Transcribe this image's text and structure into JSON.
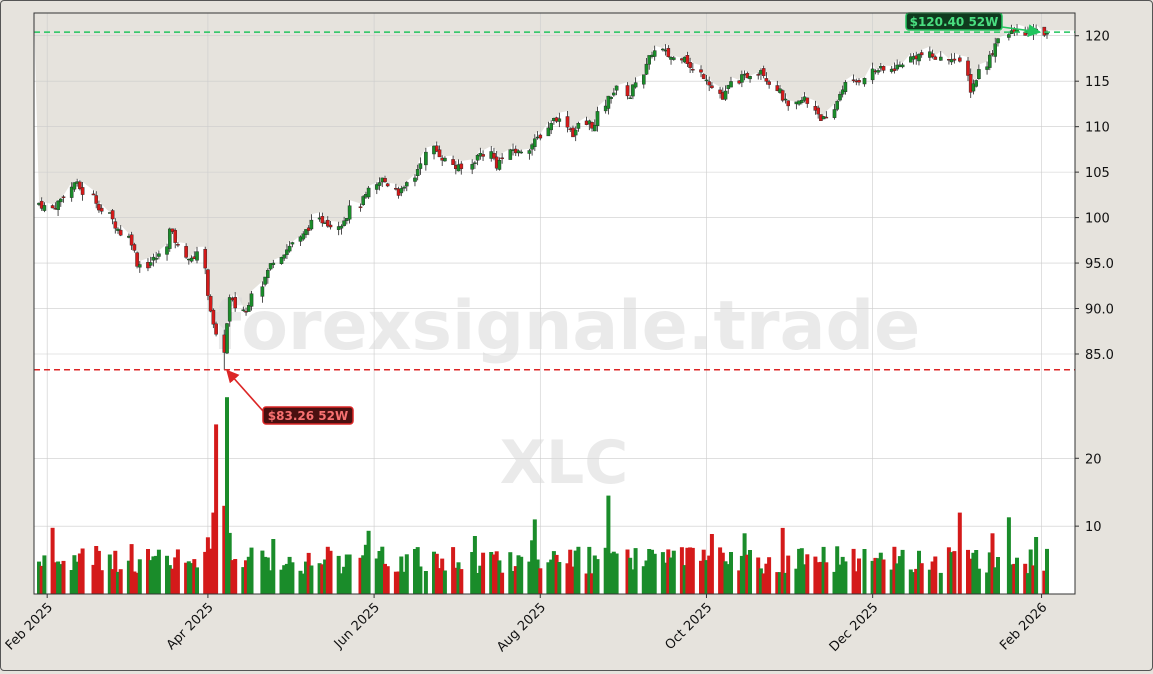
{
  "chart_data": {
    "type": "candlestick",
    "title": "",
    "watermark": "forexsignale.trade",
    "symbol": "XLC",
    "price_axis": {
      "ylim": [
        79.5,
        122.5
      ],
      "ticks": [
        85.0,
        90.0,
        95.0,
        100,
        105,
        110,
        115,
        120
      ],
      "tick_labels": [
        "85.0",
        "90.0",
        "95.0",
        "100",
        "105",
        "110",
        "115",
        "120"
      ]
    },
    "volume_axis": {
      "ylim": [
        0,
        28
      ],
      "ticks": [
        10,
        20
      ],
      "tick_labels": [
        "10",
        "20"
      ]
    },
    "x_axis": {
      "tick_dates": [
        "2025-02-01",
        "2025-04-01",
        "2025-06-01",
        "2025-08-01",
        "2025-10-01",
        "2025-12-01",
        "2026-02-01"
      ],
      "tick_labels": [
        "Feb 2025",
        "Apr 2025",
        "Jun 2025",
        "Aug 2025",
        "Oct 2025",
        "Dec 2025",
        "Feb 2026"
      ]
    },
    "annotations": {
      "high": {
        "label": "$120.40 52W",
        "value": 120.4,
        "date": "2026-02-01",
        "color": "#22c55e"
      },
      "low": {
        "label": "$83.26 52W",
        "value": 83.26,
        "date": "2025-04-07",
        "color": "#dc2626"
      }
    },
    "colors": {
      "up": "#1a8c2a",
      "down": "#d41a1a",
      "shade": "#e6e3dd",
      "plot_bg": "#ffffff"
    },
    "start_date": "2025-01-29",
    "trading_days": [
      "2025-01-29",
      "2025-01-30",
      "2025-01-31",
      "2025-02-03",
      "2025-02-04",
      "2025-02-05",
      "2025-02-06",
      "2025-02-07",
      "2025-02-10",
      "2025-02-11",
      "2025-02-12",
      "2025-02-13",
      "2025-02-14",
      "2025-02-18",
      "2025-02-19",
      "2025-02-20",
      "2025-02-21",
      "2025-02-24",
      "2025-02-25",
      "2025-02-26",
      "2025-02-27",
      "2025-02-28",
      "2025-03-03",
      "2025-03-04",
      "2025-03-05",
      "2025-03-06",
      "2025-03-07",
      "2025-03-10",
      "2025-03-11",
      "2025-03-12",
      "2025-03-13",
      "2025-03-14",
      "2025-03-17",
      "2025-03-18",
      "2025-03-19",
      "2025-03-20",
      "2025-03-21",
      "2025-03-24",
      "2025-03-25",
      "2025-03-26",
      "2025-03-27",
      "2025-03-28",
      "2025-03-31",
      "2025-04-01",
      "2025-04-02",
      "2025-04-03",
      "2025-04-04",
      "2025-04-07",
      "2025-04-08",
      "2025-04-09",
      "2025-04-10",
      "2025-04-11",
      "2025-04-14",
      "2025-04-15",
      "2025-04-16",
      "2025-04-17",
      "2025-04-21",
      "2025-04-22",
      "2025-04-23",
      "2025-04-24",
      "2025-04-25",
      "2025-04-28",
      "2025-04-29",
      "2025-04-30",
      "2025-05-01",
      "2025-05-02",
      "2025-05-05",
      "2025-05-06",
      "2025-05-07",
      "2025-05-08",
      "2025-05-09",
      "2025-05-12",
      "2025-05-13",
      "2025-05-14",
      "2025-05-15",
      "2025-05-16",
      "2025-05-19",
      "2025-05-20",
      "2025-05-21",
      "2025-05-22",
      "2025-05-23",
      "2025-05-27",
      "2025-05-28",
      "2025-05-29",
      "2025-05-30",
      "2025-06-02",
      "2025-06-03",
      "2025-06-04",
      "2025-06-05",
      "2025-06-06",
      "2025-06-09",
      "2025-06-10",
      "2025-06-11",
      "2025-06-12",
      "2025-06-13",
      "2025-06-16",
      "2025-06-17",
      "2025-06-18",
      "2025-06-20",
      "2025-06-23",
      "2025-06-24",
      "2025-06-25",
      "2025-06-26",
      "2025-06-27",
      "2025-06-30",
      "2025-07-01",
      "2025-07-02",
      "2025-07-03",
      "2025-07-07",
      "2025-07-08",
      "2025-07-09",
      "2025-07-10",
      "2025-07-11",
      "2025-07-14",
      "2025-07-15",
      "2025-07-16",
      "2025-07-17",
      "2025-07-18",
      "2025-07-21",
      "2025-07-22",
      "2025-07-23",
      "2025-07-24",
      "2025-07-25",
      "2025-07-28",
      "2025-07-29",
      "2025-07-30",
      "2025-07-31",
      "2025-08-01",
      "2025-08-04",
      "2025-08-05",
      "2025-08-06",
      "2025-08-07",
      "2025-08-08",
      "2025-08-11",
      "2025-08-12",
      "2025-08-13",
      "2025-08-14",
      "2025-08-15",
      "2025-08-18",
      "2025-08-19",
      "2025-08-20",
      "2025-08-21",
      "2025-08-22",
      "2025-08-25",
      "2025-08-26",
      "2025-08-27",
      "2025-08-28",
      "2025-08-29",
      "2025-09-02",
      "2025-09-03",
      "2025-09-04",
      "2025-09-05",
      "2025-09-08",
      "2025-09-09",
      "2025-09-10",
      "2025-09-11",
      "2025-09-12",
      "2025-09-15",
      "2025-09-16",
      "2025-09-17",
      "2025-09-18",
      "2025-09-19",
      "2025-09-22",
      "2025-09-23",
      "2025-09-24",
      "2025-09-25",
      "2025-09-26",
      "2025-09-29",
      "2025-09-30",
      "2025-10-01",
      "2025-10-02",
      "2025-10-03",
      "2025-10-06",
      "2025-10-07",
      "2025-10-08",
      "2025-10-09",
      "2025-10-10",
      "2025-10-13",
      "2025-10-14",
      "2025-10-15",
      "2025-10-16",
      "2025-10-17",
      "2025-10-20",
      "2025-10-21",
      "2025-10-22",
      "2025-10-23",
      "2025-10-24",
      "2025-10-27",
      "2025-10-28",
      "2025-10-29",
      "2025-10-30",
      "2025-10-31",
      "2025-11-03",
      "2025-11-04",
      "2025-11-05",
      "2025-11-06",
      "2025-11-07",
      "2025-11-10",
      "2025-11-11",
      "2025-11-12",
      "2025-11-13",
      "2025-11-14",
      "2025-11-17",
      "2025-11-18",
      "2025-11-19",
      "2025-11-20",
      "2025-11-21",
      "2025-11-24",
      "2025-11-25",
      "2025-11-26",
      "2025-11-28",
      "2025-12-01",
      "2025-12-02",
      "2025-12-03",
      "2025-12-04",
      "2025-12-05",
      "2025-12-08",
      "2025-12-09",
      "2025-12-10",
      "2025-12-11",
      "2025-12-12",
      "2025-12-15",
      "2025-12-16",
      "2025-12-17",
      "2025-12-18",
      "2025-12-19",
      "2025-12-22",
      "2025-12-23",
      "2025-12-24",
      "2025-12-26",
      "2025-12-29",
      "2025-12-30",
      "2025-12-31",
      "2026-01-02",
      "2026-01-05",
      "2026-01-06",
      "2026-01-07",
      "2026-01-08",
      "2026-01-09",
      "2026-01-12",
      "2026-01-13",
      "2026-01-14",
      "2026-01-15",
      "2026-01-16",
      "2026-01-20",
      "2026-01-21",
      "2026-01-22",
      "2026-01-23",
      "2026-01-26",
      "2026-01-27",
      "2026-01-28",
      "2026-01-29",
      "2026-01-30",
      "2026-02-02",
      "2026-02-03"
    ],
    "close_waypoints": [
      [
        0,
        101.6
      ],
      [
        3,
        101.0
      ],
      [
        6,
        102.0
      ],
      [
        9,
        103.9
      ],
      [
        11,
        103.2
      ],
      [
        14,
        101.8
      ],
      [
        17,
        100.2
      ],
      [
        19,
        99.2
      ],
      [
        21,
        98.3
      ],
      [
        23,
        97.4
      ],
      [
        25,
        95.0
      ],
      [
        27,
        94.8
      ],
      [
        29,
        95.4
      ],
      [
        31,
        95.8
      ],
      [
        33,
        98.6
      ],
      [
        35,
        97.5
      ],
      [
        37,
        96.0
      ],
      [
        39,
        95.2
      ],
      [
        41,
        96.4
      ],
      [
        43,
        91.8
      ],
      [
        45,
        88.0
      ],
      [
        47,
        85.5
      ],
      [
        49,
        91.0
      ],
      [
        51,
        90.2
      ],
      [
        53,
        89.6
      ],
      [
        55,
        92.0
      ],
      [
        57,
        93.4
      ],
      [
        59,
        94.8
      ],
      [
        61,
        96.0
      ],
      [
        63,
        96.5
      ],
      [
        65,
        97.3
      ],
      [
        67,
        98.0
      ],
      [
        69,
        99.0
      ],
      [
        71,
        99.6
      ],
      [
        73,
        99.8
      ],
      [
        75,
        99.2
      ],
      [
        77,
        99.5
      ],
      [
        79,
        100.3
      ],
      [
        81,
        101.5
      ],
      [
        83,
        102.3
      ],
      [
        85,
        103.4
      ],
      [
        87,
        104.2
      ],
      [
        89,
        103.7
      ],
      [
        91,
        102.8
      ],
      [
        93,
        103.0
      ],
      [
        95,
        104.5
      ],
      [
        97,
        106.3
      ],
      [
        99,
        107.6
      ],
      [
        101,
        107.0
      ],
      [
        103,
        106.3
      ],
      [
        105,
        105.5
      ],
      [
        107,
        105.3
      ],
      [
        109,
        106.4
      ],
      [
        111,
        107.0
      ],
      [
        113,
        107.1
      ],
      [
        115,
        105.8
      ],
      [
        117,
        106.6
      ],
      [
        119,
        107.5
      ],
      [
        121,
        107.1
      ],
      [
        123,
        107.8
      ],
      [
        125,
        108.3
      ],
      [
        127,
        109.1
      ],
      [
        129,
        110.6
      ],
      [
        131,
        111.0
      ],
      [
        133,
        110.3
      ],
      [
        135,
        109.2
      ],
      [
        137,
        110.1
      ],
      [
        139,
        110.4
      ],
      [
        141,
        110.0
      ],
      [
        143,
        112.5
      ],
      [
        145,
        113.6
      ],
      [
        147,
        114.1
      ],
      [
        149,
        113.3
      ],
      [
        151,
        115.2
      ],
      [
        153,
        116.6
      ],
      [
        155,
        118.2
      ],
      [
        157,
        118.3
      ],
      [
        159,
        117.8
      ],
      [
        161,
        117.5
      ],
      [
        163,
        118.0
      ],
      [
        165,
        116.4
      ],
      [
        167,
        115.8
      ],
      [
        169,
        115.5
      ],
      [
        171,
        114.3
      ],
      [
        173,
        113.0
      ],
      [
        175,
        114.3
      ],
      [
        177,
        115.2
      ],
      [
        179,
        115.4
      ],
      [
        181,
        115.9
      ],
      [
        183,
        116.4
      ],
      [
        185,
        115.4
      ],
      [
        187,
        114.3
      ],
      [
        189,
        113.2
      ],
      [
        191,
        112.0
      ],
      [
        193,
        112.6
      ],
      [
        195,
        113.1
      ],
      [
        197,
        112.0
      ],
      [
        199,
        111.0
      ],
      [
        201,
        110.6
      ],
      [
        203,
        112.9
      ],
      [
        205,
        114.4
      ],
      [
        207,
        114.8
      ],
      [
        209,
        115.2
      ],
      [
        211,
        116.1
      ],
      [
        213,
        116.3
      ],
      [
        215,
        116.1
      ],
      [
        217,
        116.5
      ],
      [
        219,
        116.7
      ],
      [
        221,
        117.5
      ],
      [
        223,
        117.8
      ],
      [
        225,
        117.9
      ],
      [
        227,
        117.7
      ],
      [
        229,
        117.4
      ],
      [
        231,
        117.8
      ],
      [
        233,
        116.8
      ],
      [
        235,
        114.1
      ],
      [
        237,
        115.3
      ],
      [
        239,
        117.0
      ],
      [
        241,
        118.3
      ],
      [
        243,
        120.0
      ],
      [
        246,
        120.4
      ]
    ],
    "volume_ylim": [
      0,
      28
    ],
    "volume_seed": 7
  }
}
